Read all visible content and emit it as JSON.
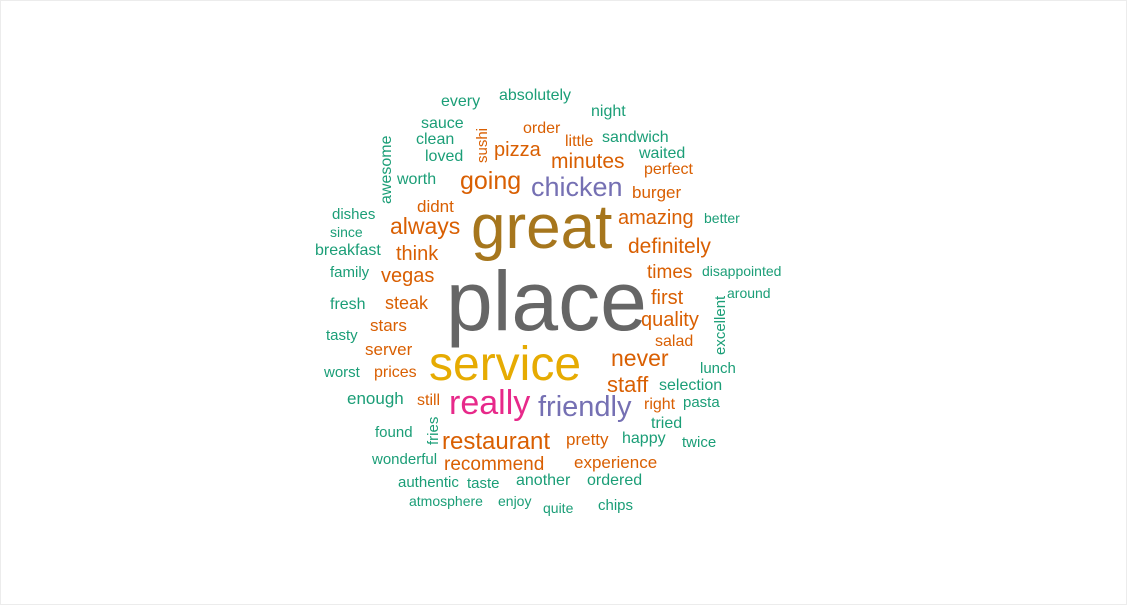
{
  "palette": {
    "teal": "#1b9e77",
    "orange": "#d95f02",
    "purple": "#7570b3",
    "magenta": "#e7298a",
    "gold": "#e6ab02",
    "brown": "#a6761d",
    "gray": "#666666"
  },
  "words": [
    {
      "text": "place",
      "color": "gray"
    },
    {
      "text": "great",
      "color": "brown"
    },
    {
      "text": "service",
      "color": "gold"
    },
    {
      "text": "really",
      "color": "magenta"
    },
    {
      "text": "friendly",
      "color": "purple"
    },
    {
      "text": "chicken",
      "color": "purple"
    },
    {
      "text": "restaurant",
      "color": "orange"
    },
    {
      "text": "going",
      "color": "orange"
    },
    {
      "text": "always",
      "color": "orange"
    },
    {
      "text": "never",
      "color": "orange"
    },
    {
      "text": "staff",
      "color": "orange"
    },
    {
      "text": "definitely",
      "color": "orange"
    },
    {
      "text": "minutes",
      "color": "orange"
    },
    {
      "text": "amazing",
      "color": "orange"
    },
    {
      "text": "think",
      "color": "orange"
    },
    {
      "text": "vegas",
      "color": "orange"
    },
    {
      "text": "quality",
      "color": "orange"
    },
    {
      "text": "recommend",
      "color": "orange"
    },
    {
      "text": "pizza",
      "color": "orange"
    },
    {
      "text": "times",
      "color": "orange"
    },
    {
      "text": "first",
      "color": "orange"
    },
    {
      "text": "steak",
      "color": "orange"
    },
    {
      "text": "stars",
      "color": "orange"
    },
    {
      "text": "server",
      "color": "orange"
    },
    {
      "text": "pretty",
      "color": "orange"
    },
    {
      "text": "experience",
      "color": "orange"
    },
    {
      "text": "burger",
      "color": "orange"
    },
    {
      "text": "didnt",
      "color": "orange"
    },
    {
      "text": "prices",
      "color": "orange"
    },
    {
      "text": "order",
      "color": "orange"
    },
    {
      "text": "little",
      "color": "orange"
    },
    {
      "text": "perfect",
      "color": "orange"
    },
    {
      "text": "salad",
      "color": "orange"
    },
    {
      "text": "right",
      "color": "orange"
    },
    {
      "text": "still",
      "color": "orange"
    },
    {
      "text": "sushi",
      "color": "orange"
    },
    {
      "text": "absolutely",
      "color": "teal"
    },
    {
      "text": "every",
      "color": "teal"
    },
    {
      "text": "night",
      "color": "teal"
    },
    {
      "text": "sauce",
      "color": "teal"
    },
    {
      "text": "clean",
      "color": "teal"
    },
    {
      "text": "loved",
      "color": "teal"
    },
    {
      "text": "awesome",
      "color": "teal"
    },
    {
      "text": "sandwich",
      "color": "teal"
    },
    {
      "text": "waited",
      "color": "teal"
    },
    {
      "text": "worth",
      "color": "teal"
    },
    {
      "text": "dishes",
      "color": "teal"
    },
    {
      "text": "since",
      "color": "teal"
    },
    {
      "text": "better",
      "color": "teal"
    },
    {
      "text": "breakfast",
      "color": "teal"
    },
    {
      "text": "family",
      "color": "teal"
    },
    {
      "text": "disappointed",
      "color": "teal"
    },
    {
      "text": "around",
      "color": "teal"
    },
    {
      "text": "fresh",
      "color": "teal"
    },
    {
      "text": "excellent",
      "color": "teal"
    },
    {
      "text": "tasty",
      "color": "teal"
    },
    {
      "text": "lunch",
      "color": "teal"
    },
    {
      "text": "worst",
      "color": "teal"
    },
    {
      "text": "selection",
      "color": "teal"
    },
    {
      "text": "enough",
      "color": "teal"
    },
    {
      "text": "pasta",
      "color": "teal"
    },
    {
      "text": "tried",
      "color": "teal"
    },
    {
      "text": "found",
      "color": "teal"
    },
    {
      "text": "fries",
      "color": "teal"
    },
    {
      "text": "happy",
      "color": "teal"
    },
    {
      "text": "twice",
      "color": "teal"
    },
    {
      "text": "wonderful",
      "color": "teal"
    },
    {
      "text": "authentic",
      "color": "teal"
    },
    {
      "text": "taste",
      "color": "teal"
    },
    {
      "text": "another",
      "color": "teal"
    },
    {
      "text": "ordered",
      "color": "teal"
    },
    {
      "text": "atmosphere",
      "color": "teal"
    },
    {
      "text": "enjoy",
      "color": "teal"
    },
    {
      "text": "quite",
      "color": "teal"
    },
    {
      "text": "chips",
      "color": "teal"
    }
  ]
}
